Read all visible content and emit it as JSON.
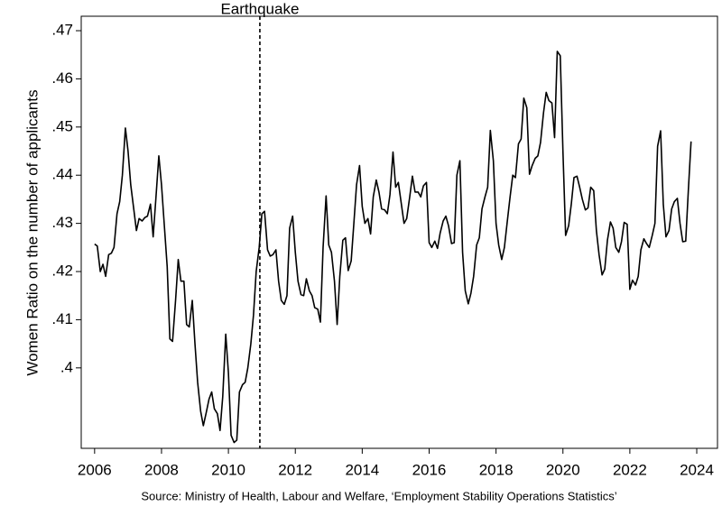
{
  "chart_data": {
    "type": "line",
    "y_label": "Women Ratio on the number of applicants",
    "source": "Source: Ministry of Health, Labour and Welfare, ‘Employment Stability Operations Statistics’",
    "annotations": [
      {
        "text": "Earthquake",
        "x": 2010.94
      }
    ],
    "color": "#000000",
    "xlim": [
      2005.6,
      2024.62
    ],
    "ylim": [
      0.3833,
      0.473
    ],
    "xticks": [
      2006,
      2008,
      2010,
      2012,
      2014,
      2016,
      2018,
      2020,
      2022,
      2024
    ],
    "yticks": [
      {
        "value": 0.4,
        "label": ".4"
      },
      {
        "value": 0.41,
        "label": ".41"
      },
      {
        "value": 0.42,
        "label": ".42"
      },
      {
        "value": 0.43,
        "label": ".43"
      },
      {
        "value": 0.44,
        "label": ".44"
      },
      {
        "value": 0.45,
        "label": ".45"
      },
      {
        "value": 0.46,
        "label": ".46"
      },
      {
        "value": 0.47,
        "label": ".47"
      }
    ],
    "x": [
      2006,
      2006.08,
      2006.17,
      2006.25,
      2006.33,
      2006.42,
      2006.5,
      2006.58,
      2006.67,
      2006.75,
      2006.83,
      2006.92,
      2007,
      2007.08,
      2007.17,
      2007.25,
      2007.33,
      2007.42,
      2007.5,
      2007.58,
      2007.67,
      2007.75,
      2007.83,
      2007.92,
      2008,
      2008.08,
      2008.17,
      2008.25,
      2008.33,
      2008.42,
      2008.5,
      2008.58,
      2008.67,
      2008.75,
      2008.83,
      2008.92,
      2009,
      2009.08,
      2009.17,
      2009.25,
      2009.33,
      2009.42,
      2009.5,
      2009.58,
      2009.67,
      2009.75,
      2009.83,
      2009.92,
      2010,
      2010.08,
      2010.17,
      2010.25,
      2010.33,
      2010.42,
      2010.5,
      2010.58,
      2010.67,
      2010.75,
      2010.83,
      2010.92,
      2011,
      2011.08,
      2011.17,
      2011.25,
      2011.33,
      2011.42,
      2011.5,
      2011.58,
      2011.67,
      2011.75,
      2011.83,
      2011.92,
      2012,
      2012.08,
      2012.17,
      2012.25,
      2012.33,
      2012.42,
      2012.5,
      2012.58,
      2012.67,
      2012.75,
      2012.83,
      2012.92,
      2013,
      2013.08,
      2013.17,
      2013.25,
      2013.33,
      2013.42,
      2013.5,
      2013.58,
      2013.67,
      2013.75,
      2013.83,
      2013.92,
      2014,
      2014.08,
      2014.17,
      2014.25,
      2014.33,
      2014.42,
      2014.5,
      2014.58,
      2014.67,
      2014.75,
      2014.83,
      2014.92,
      2015,
      2015.08,
      2015.17,
      2015.25,
      2015.33,
      2015.42,
      2015.5,
      2015.58,
      2015.67,
      2015.75,
      2015.83,
      2015.92,
      2016,
      2016.08,
      2016.17,
      2016.25,
      2016.33,
      2016.42,
      2016.5,
      2016.58,
      2016.67,
      2016.75,
      2016.83,
      2016.92,
      2017,
      2017.08,
      2017.17,
      2017.25,
      2017.33,
      2017.42,
      2017.5,
      2017.58,
      2017.67,
      2017.75,
      2017.83,
      2017.92,
      2018,
      2018.08,
      2018.17,
      2018.25,
      2018.33,
      2018.42,
      2018.5,
      2018.58,
      2018.67,
      2018.75,
      2018.83,
      2018.92,
      2019,
      2019.08,
      2019.17,
      2019.25,
      2019.33,
      2019.42,
      2019.5,
      2019.58,
      2019.67,
      2019.75,
      2019.83,
      2019.92,
      2020,
      2020.08,
      2020.17,
      2020.25,
      2020.33,
      2020.42,
      2020.5,
      2020.58,
      2020.67,
      2020.75,
      2020.83,
      2020.92,
      2021,
      2021.08,
      2021.17,
      2021.25,
      2021.33,
      2021.42,
      2021.5,
      2021.58,
      2021.67,
      2021.75,
      2021.83,
      2021.92,
      2022,
      2022.08,
      2022.17,
      2022.25,
      2022.33,
      2022.42,
      2022.5,
      2022.58,
      2022.67,
      2022.75,
      2022.83,
      2022.92,
      2023,
      2023.08,
      2023.17,
      2023.25,
      2023.33,
      2023.42,
      2023.5,
      2023.58,
      2023.67,
      2023.75,
      2023.83
    ],
    "values": [
      0.4257,
      0.4253,
      0.42,
      0.4215,
      0.419,
      0.4235,
      0.4238,
      0.425,
      0.432,
      0.4345,
      0.44,
      0.4498,
      0.445,
      0.438,
      0.433,
      0.4285,
      0.431,
      0.4305,
      0.4312,
      0.4315,
      0.434,
      0.4272,
      0.435,
      0.444,
      0.438,
      0.43,
      0.421,
      0.406,
      0.4055,
      0.414,
      0.4225,
      0.418,
      0.418,
      0.409,
      0.4085,
      0.414,
      0.405,
      0.397,
      0.391,
      0.388,
      0.3905,
      0.3935,
      0.395,
      0.3915,
      0.3905,
      0.387,
      0.394,
      0.407,
      0.399,
      0.386,
      0.3845,
      0.385,
      0.395,
      0.3965,
      0.397,
      0.4,
      0.405,
      0.411,
      0.42,
      0.425,
      0.432,
      0.4325,
      0.4245,
      0.4232,
      0.4235,
      0.4245,
      0.418,
      0.414,
      0.4132,
      0.415,
      0.429,
      0.4315,
      0.424,
      0.418,
      0.4152,
      0.415,
      0.4185,
      0.416,
      0.415,
      0.4125,
      0.4122,
      0.4095,
      0.425,
      0.4357,
      0.4255,
      0.424,
      0.418,
      0.409,
      0.419,
      0.4265,
      0.427,
      0.4202,
      0.4222,
      0.43,
      0.438,
      0.442,
      0.4335,
      0.43,
      0.431,
      0.4278,
      0.4355,
      0.439,
      0.4365,
      0.433,
      0.4328,
      0.432,
      0.436,
      0.4448,
      0.4375,
      0.4385,
      0.434,
      0.43,
      0.431,
      0.4355,
      0.4398,
      0.4365,
      0.4365,
      0.4355,
      0.4378,
      0.4385,
      0.426,
      0.425,
      0.4263,
      0.4248,
      0.428,
      0.4305,
      0.4315,
      0.4295,
      0.4258,
      0.426,
      0.44,
      0.443,
      0.424,
      0.416,
      0.4133,
      0.4155,
      0.419,
      0.4255,
      0.427,
      0.433,
      0.4355,
      0.4375,
      0.4493,
      0.443,
      0.43,
      0.4255,
      0.4225,
      0.425,
      0.43,
      0.4355,
      0.44,
      0.4395,
      0.4465,
      0.4475,
      0.456,
      0.454,
      0.4402,
      0.442,
      0.4435,
      0.444,
      0.4468,
      0.453,
      0.4572,
      0.4555,
      0.455,
      0.4478,
      0.4657,
      0.4648,
      0.445,
      0.4275,
      0.4295,
      0.434,
      0.4395,
      0.4398,
      0.4375,
      0.435,
      0.4328,
      0.4332,
      0.4375,
      0.4368,
      0.4285,
      0.4235,
      0.4193,
      0.4205,
      0.4265,
      0.4303,
      0.429,
      0.425,
      0.424,
      0.4262,
      0.4302,
      0.4298,
      0.4163,
      0.4182,
      0.4172,
      0.419,
      0.4245,
      0.4268,
      0.4258,
      0.425,
      0.4275,
      0.43,
      0.446,
      0.4492,
      0.434,
      0.4272,
      0.4285,
      0.433,
      0.4345,
      0.4352,
      0.43,
      0.4262,
      0.4263,
      0.437,
      0.447
    ]
  }
}
